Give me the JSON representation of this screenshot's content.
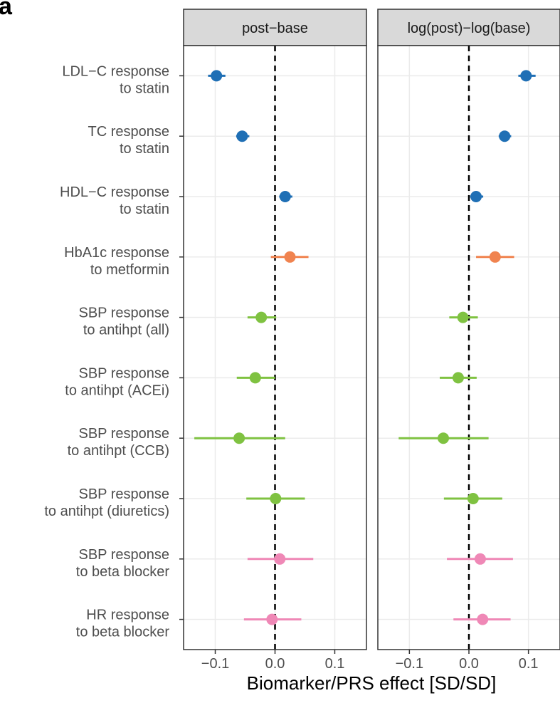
{
  "chart_data": {
    "type": "forest",
    "panel_label": "a",
    "x_label": "Biomarker/PRS effect [SD/SD]",
    "categories": [
      "LDL−C response\nto statin",
      "TC response\nto statin",
      "HDL−C response\nto statin",
      "HbA1c response\nto metformin",
      "SBP response\nto antihpt (all)",
      "SBP response\nto antihpt (ACEi)",
      "SBP response\nto antihpt (CCB)",
      "SBP response\nto antihpt (diuretics)",
      "SBP response\nto beta blocker",
      "HR response\nto beta blocker"
    ],
    "colors": [
      "#1f6fb5",
      "#1f6fb5",
      "#1f6fb5",
      "#f0834f",
      "#7fc241",
      "#7fc241",
      "#7fc241",
      "#7fc241",
      "#ef88b6",
      "#ef88b6"
    ],
    "xlim": [
      -0.153,
      0.153
    ],
    "xticks": [
      {
        "value": -0.1,
        "label": "−0.1"
      },
      {
        "value": 0,
        "label": "0.0"
      },
      {
        "value": 0.1,
        "label": "0.1"
      }
    ],
    "reference_line": 0,
    "grid": true,
    "panels": [
      {
        "title": "post−base",
        "values": [
          -0.098,
          -0.055,
          0.017,
          0.025,
          -0.023,
          -0.033,
          -0.06,
          0.001,
          0.008,
          -0.005
        ],
        "lower": [
          -0.112,
          -0.065,
          0.007,
          -0.007,
          -0.046,
          -0.064,
          -0.135,
          -0.048,
          -0.046,
          -0.052
        ],
        "upper": [
          -0.083,
          -0.043,
          0.029,
          0.056,
          0.002,
          0.0,
          0.017,
          0.05,
          0.064,
          0.044
        ]
      },
      {
        "title": "log(post)−log(base)",
        "values": [
          0.096,
          0.06,
          0.012,
          0.044,
          -0.01,
          -0.018,
          -0.043,
          0.007,
          0.019,
          0.023
        ],
        "lower": [
          0.083,
          0.05,
          0.002,
          0.012,
          -0.033,
          -0.049,
          -0.118,
          -0.042,
          -0.037,
          -0.026
        ],
        "upper": [
          0.112,
          0.071,
          0.024,
          0.076,
          0.015,
          0.013,
          0.033,
          0.056,
          0.074,
          0.07
        ]
      }
    ]
  }
}
